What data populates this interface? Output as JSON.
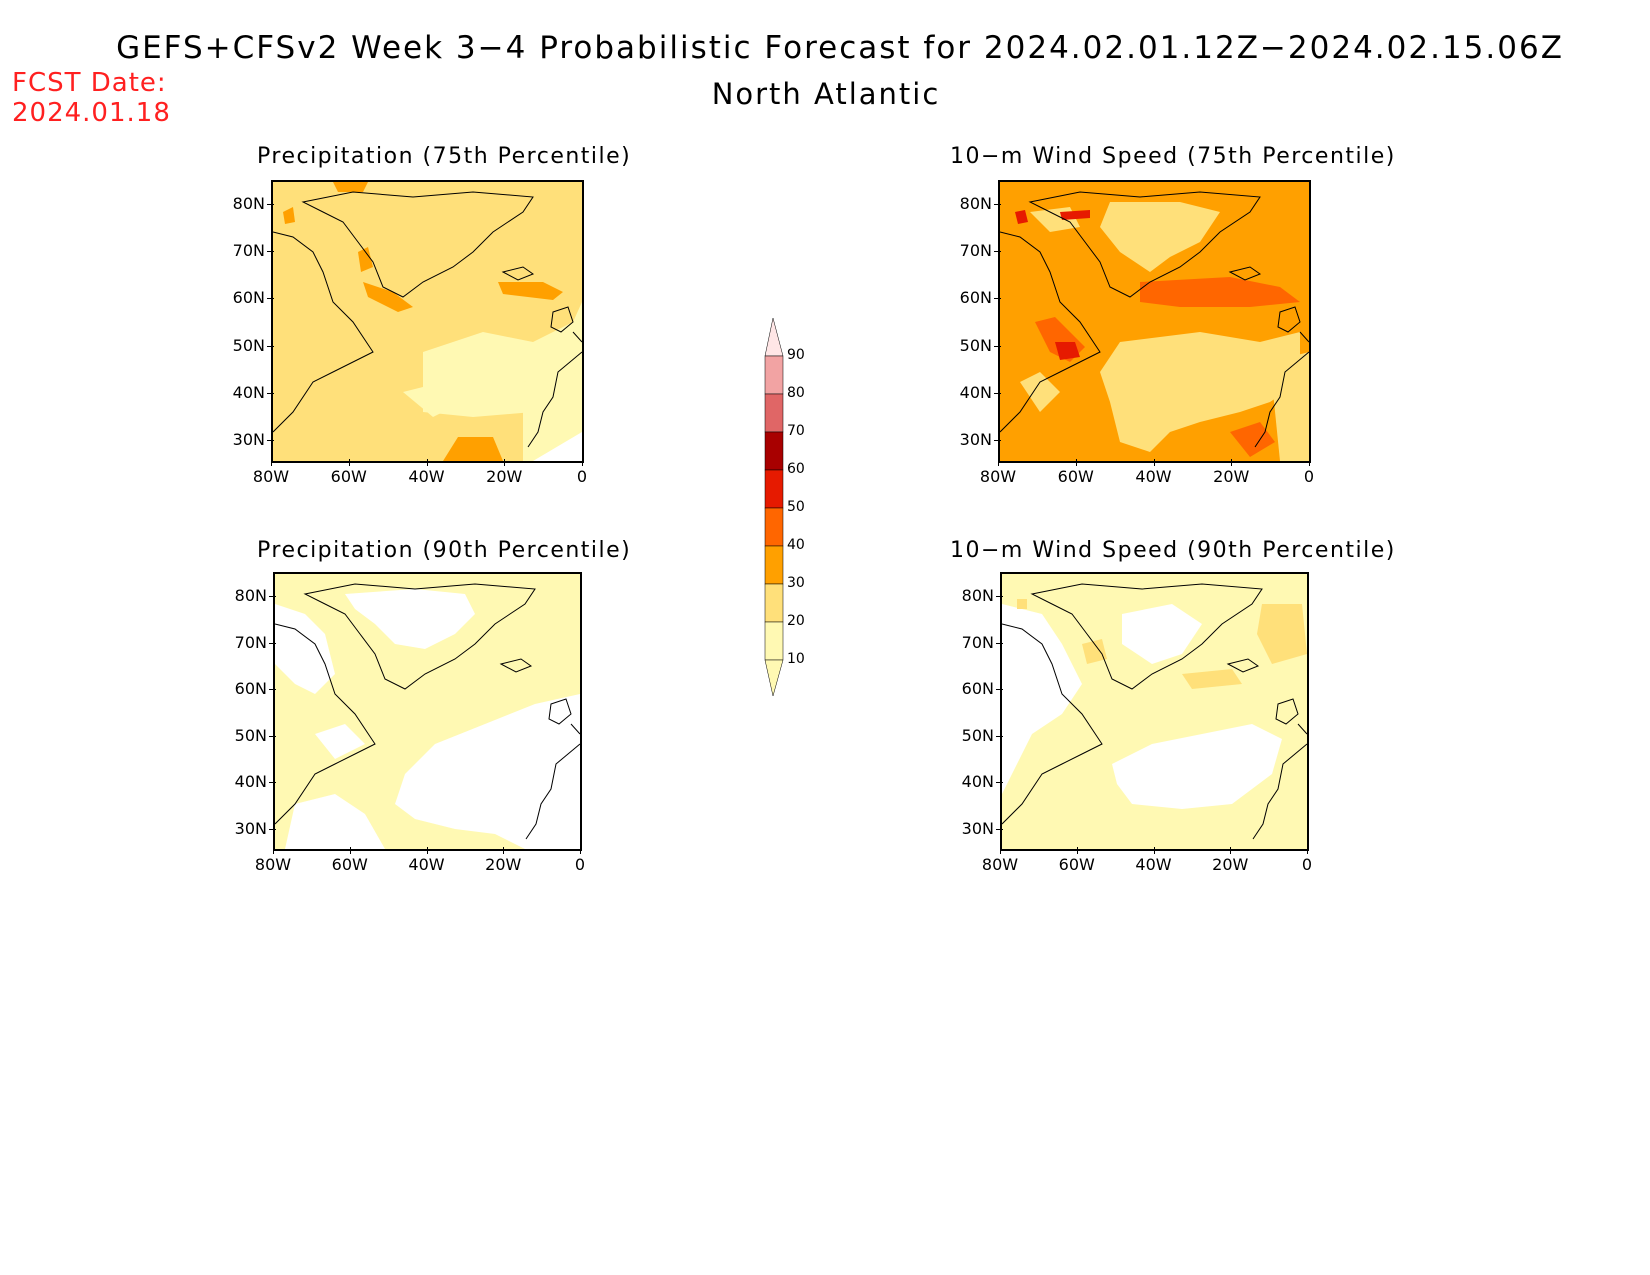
{
  "header": {
    "title": "GEFS+CFSv2 Week 3−4 Probabilistic Forecast for 2024.02.01.12Z−2024.02.15.06Z",
    "subtitle": "North Atlantic",
    "fcst_label": "FCST Date:",
    "fcst_date": "2024.01.18"
  },
  "panels": [
    {
      "title": "Precipitation (75th Percentile)",
      "variable": "precipitation",
      "percentile": 75,
      "dominant_category": "20-30",
      "max_category": "30-40"
    },
    {
      "title": "10−m Wind Speed (75th Percentile)",
      "variable": "wind_speed",
      "percentile": 75,
      "dominant_category": "30-40",
      "max_category": "50-60"
    },
    {
      "title": "Precipitation (90th Percentile)",
      "variable": "precipitation",
      "percentile": 90,
      "dominant_category": "10-20",
      "max_category": "10-20"
    },
    {
      "title": "10−m Wind Speed (90th Percentile)",
      "variable": "wind_speed",
      "percentile": 90,
      "dominant_category": "10-20",
      "max_category": "20-30"
    }
  ],
  "axes": {
    "lat_labels": [
      "80N",
      "70N",
      "60N",
      "50N",
      "40N",
      "30N"
    ],
    "lon_labels": [
      "80W",
      "60W",
      "40W",
      "20W",
      "0"
    ]
  },
  "colorbar": {
    "labels": [
      "90",
      "80",
      "70",
      "60",
      "50",
      "40",
      "30",
      "20",
      "10"
    ],
    "colors": [
      "#ffe6e6",
      "#f2a3a3",
      "#e06666",
      "#a80000",
      "#e61a00",
      "#ff6600",
      "#ffa000",
      "#ffe07a",
      "#fff9b3"
    ]
  },
  "colors": {
    "fcst_text": "#ff2020",
    "cat_10_20": "#fff9b3",
    "cat_20_30": "#ffe07a",
    "cat_30_40": "#ffa000",
    "cat_40_50": "#ff6600",
    "cat_50_60": "#e61a00"
  }
}
